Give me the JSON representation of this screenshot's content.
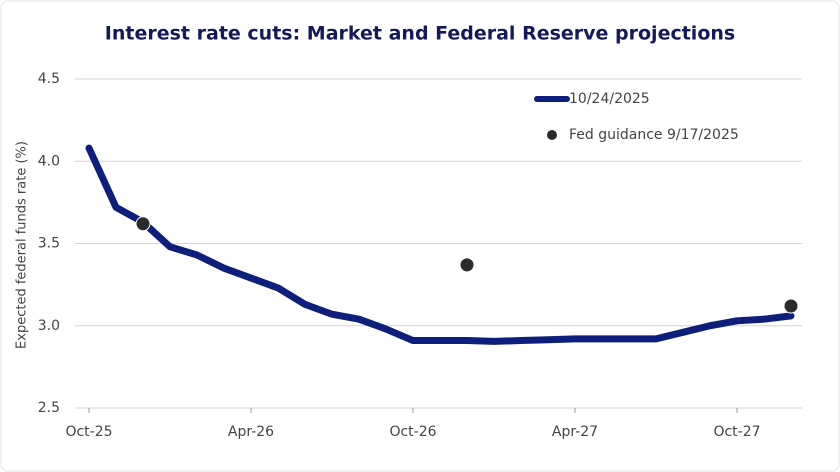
{
  "chart_data": {
    "type": "line",
    "title": "Interest rate cuts: Market and Federal Reserve projections",
    "y_label": "Expected federal funds rate (%)",
    "categories": [
      "Oct-25",
      null,
      null,
      null,
      null,
      null,
      "Apr-26",
      null,
      null,
      null,
      null,
      null,
      "Oct-26",
      null,
      null,
      null,
      null,
      null,
      "Apr-27",
      null,
      null,
      null,
      null,
      null,
      "Oct-27",
      null,
      null
    ],
    "series": [
      {
        "name": "10/24/2025",
        "type": "line",
        "color": "#0d1f7a",
        "values": [
          4.08,
          3.72,
          3.63,
          3.48,
          3.43,
          3.35,
          3.29,
          3.23,
          3.13,
          3.07,
          3.04,
          2.98,
          2.91,
          2.91,
          2.91,
          2.905,
          2.91,
          2.915,
          2.92,
          2.92,
          2.92,
          2.92,
          2.96,
          3.0,
          3.03,
          3.04,
          3.06
        ]
      },
      {
        "name": "Fed guidance 9/17/2025",
        "type": "scatter",
        "color": "#2b2b2b",
        "values": [
          null,
          null,
          3.62,
          null,
          null,
          null,
          null,
          null,
          null,
          null,
          null,
          null,
          null,
          null,
          3.37,
          null,
          null,
          null,
          null,
          null,
          null,
          null,
          null,
          null,
          null,
          null,
          3.12
        ]
      }
    ],
    "ylim": [
      2.5,
      4.5
    ],
    "yticks": [
      2.5,
      {
        "value": 3,
        "label": "3.0"
      },
      3.5,
      {
        "value": 4,
        "label": "4.0"
      },
      4.5
    ],
    "grid": true
  }
}
